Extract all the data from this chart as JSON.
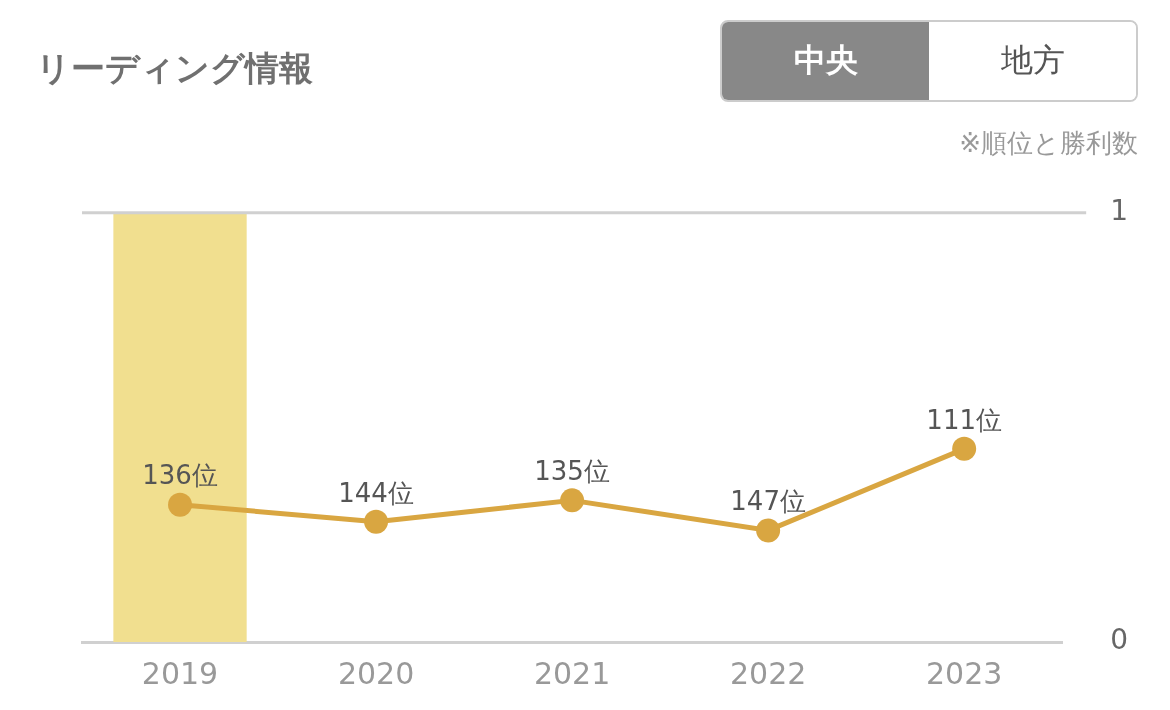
{
  "chart_data": {
    "type": "line",
    "title": "リーディング情報",
    "categories": [
      "2019",
      "2020",
      "2021",
      "2022",
      "2023"
    ],
    "series": [
      {
        "color": "#d9a641",
        "values": [
          0.32,
          0.28,
          0.33,
          0.26,
          0.45
        ]
      }
    ],
    "ylim": [
      0,
      1
    ],
    "yticks": [
      0,
      1
    ],
    "ref_lines": [
      {
        "axis": "y",
        "value": 1,
        "color": "#d0d0d0"
      }
    ],
    "marker": "circle",
    "line_style": "solid",
    "bands": [
      {
        "axis": "x",
        "from": "2019",
        "to": "2019",
        "color": "#f1df8f"
      }
    ],
    "annotations": [
      "中央",
      "地方",
      "※順位と勝利数",
      {
        "text": "136位",
        "x": "2019",
        "y": 0.32
      },
      {
        "text": "144位",
        "x": "2020",
        "y": 0.28
      },
      {
        "text": "135位",
        "x": "2021",
        "y": 0.33
      },
      {
        "text": "147位",
        "x": "2022",
        "y": 0.26
      },
      {
        "text": "111位",
        "x": "2023",
        "y": 0.45
      }
    ]
  }
}
